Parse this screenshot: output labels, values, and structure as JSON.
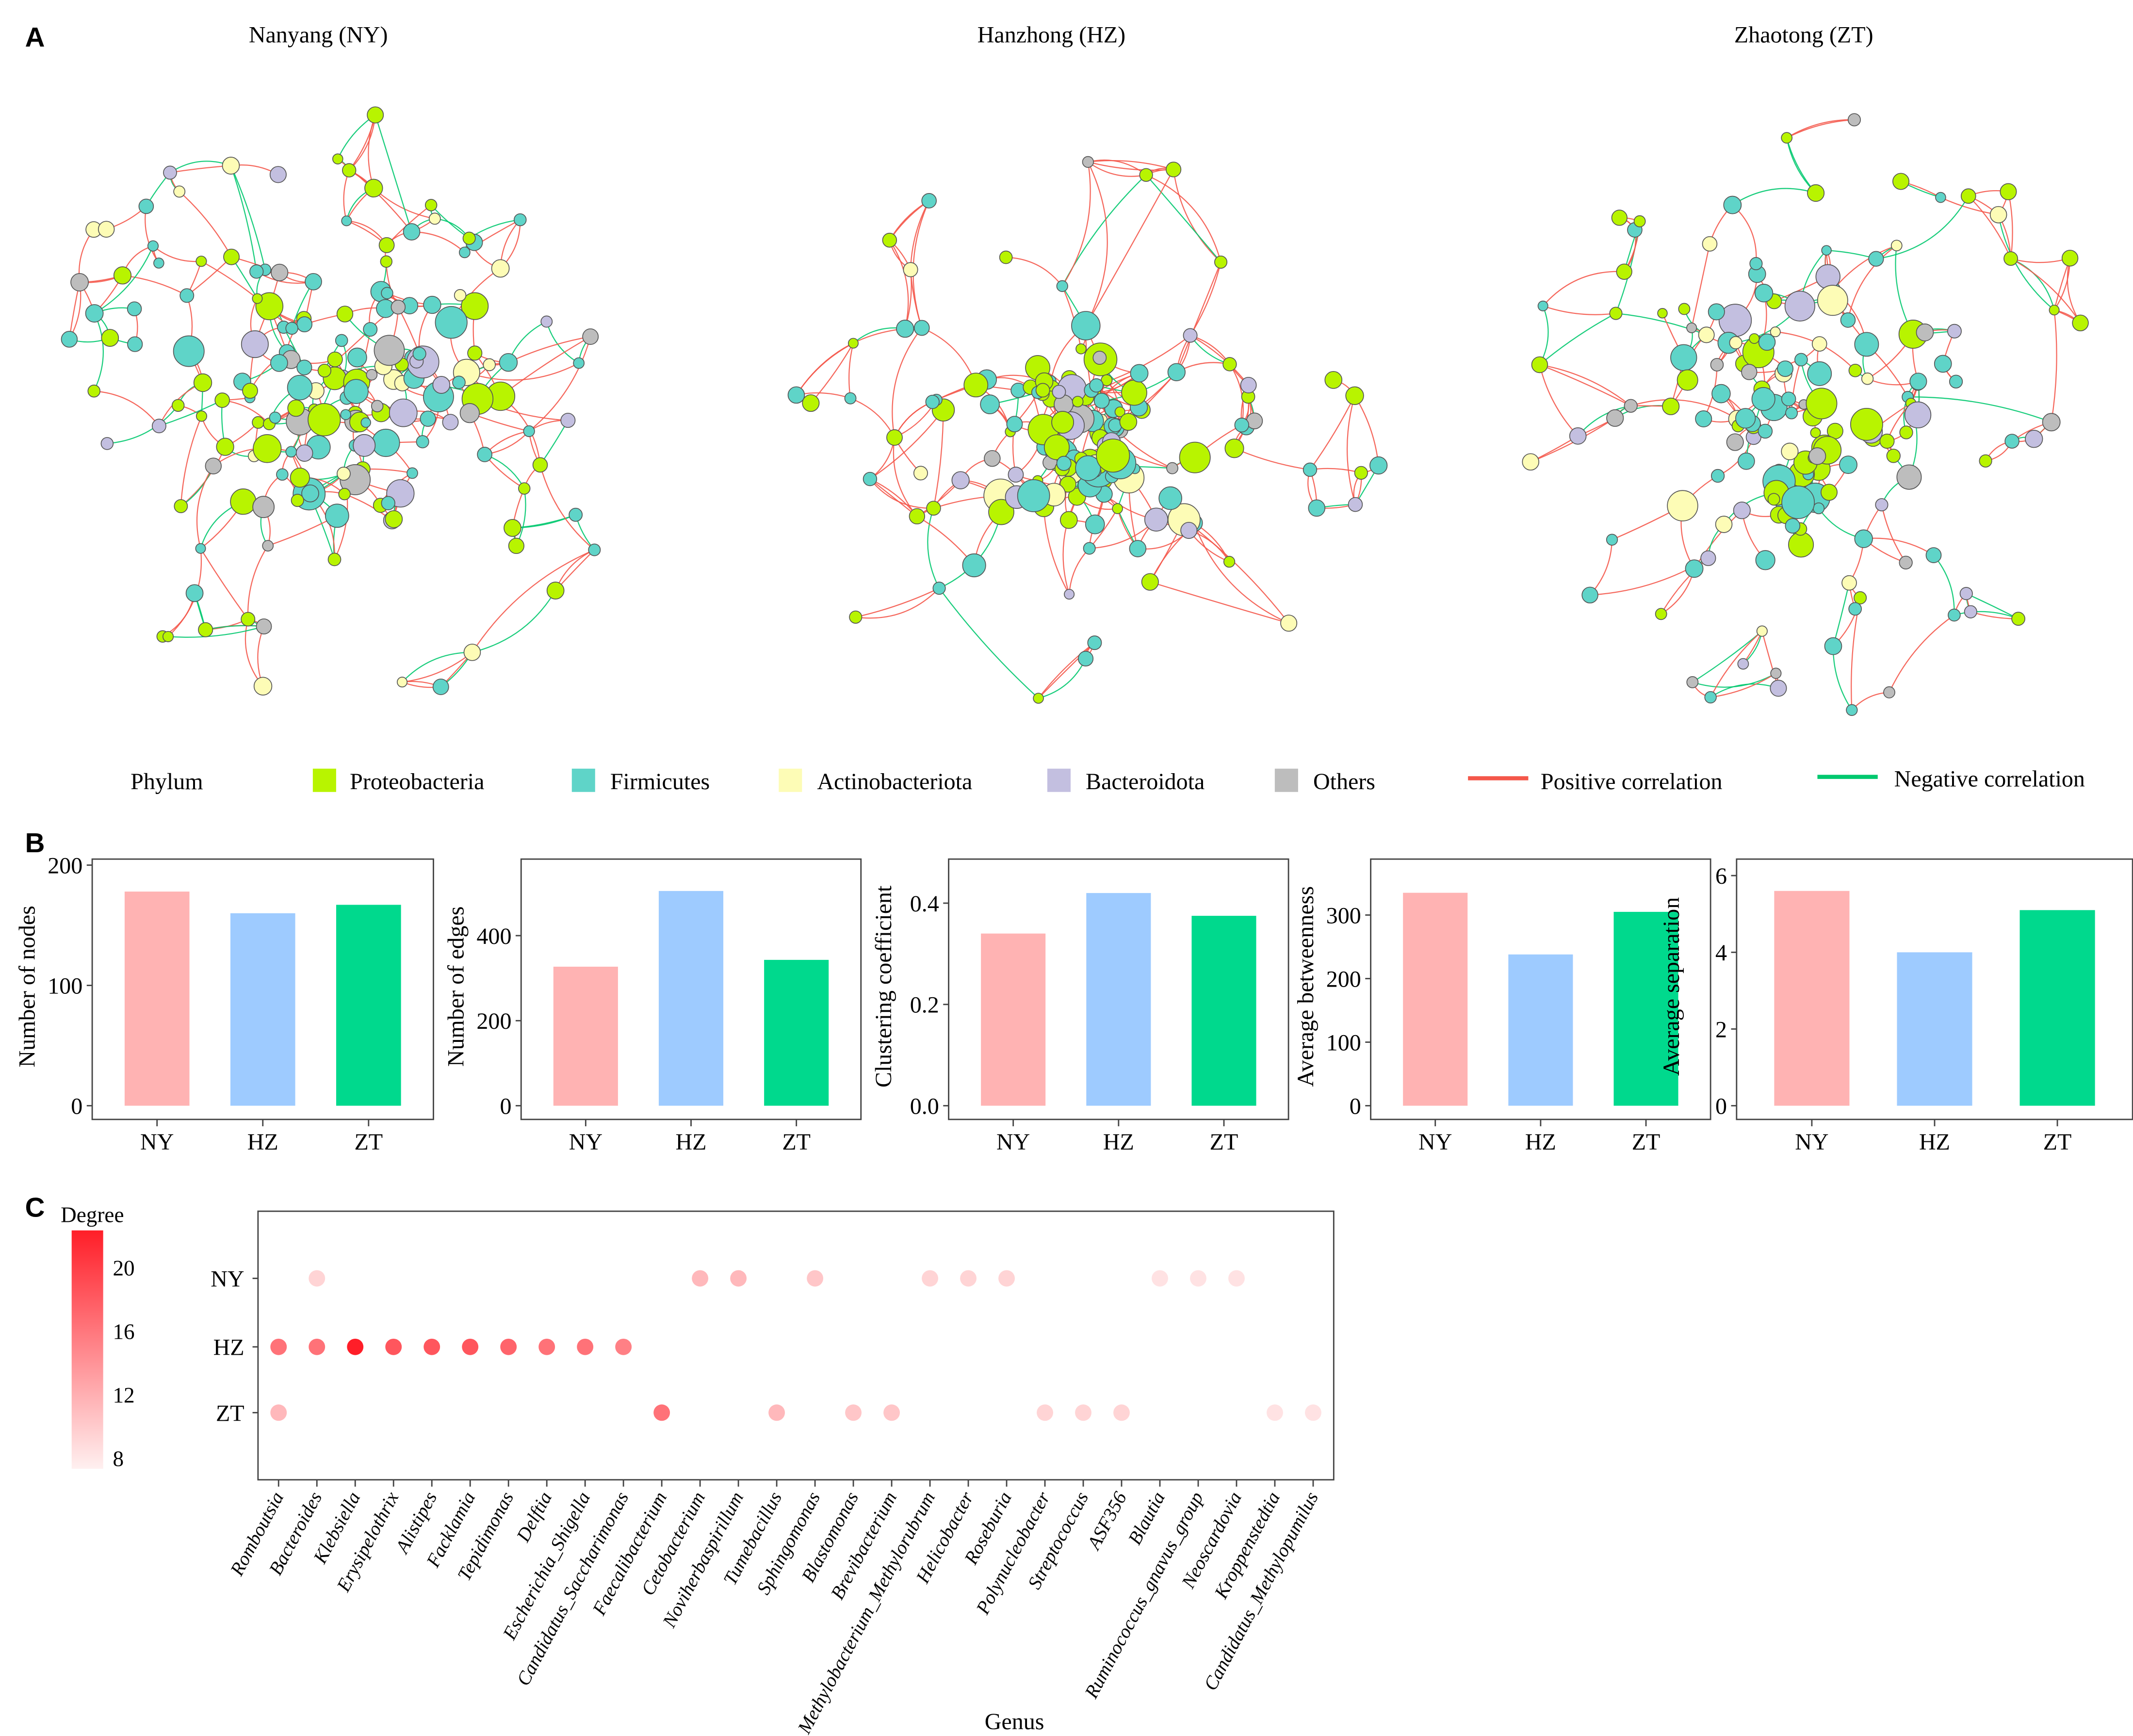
{
  "panel_labels": {
    "a": "A",
    "b": "B",
    "c": "C"
  },
  "networks": [
    {
      "title": "Nanyang (NY)"
    },
    {
      "title": "Hanzhong (HZ)"
    },
    {
      "title": "Zhaotong (ZT)"
    }
  ],
  "legend": {
    "title": "Phylum",
    "phyla": [
      {
        "label": "Proteobacteria",
        "color": "#b8f400"
      },
      {
        "label": "Firmicutes",
        "color": "#5fd4c8"
      },
      {
        "label": "Actinobacteriota",
        "color": "#fdfcb6"
      },
      {
        "label": "Bacteroidota",
        "color": "#c3bfe0"
      },
      {
        "label": "Others",
        "color": "#bdbdbd"
      }
    ],
    "edges": [
      {
        "label": "Positive correlation",
        "color": "#f4574a"
      },
      {
        "label": "Negative correlation",
        "color": "#00c86e"
      }
    ]
  },
  "chart_data": [
    {
      "type": "bar",
      "ylabel": "Number of nodes",
      "categories": [
        "NY",
        "HZ",
        "ZT"
      ],
      "values": [
        178,
        160,
        167
      ],
      "ylim": [
        0,
        205
      ],
      "yticks": [
        "0",
        "100",
        "200"
      ],
      "ytick_values": [
        0,
        100,
        200
      ],
      "colors": [
        "#ffb3b3",
        "#9ecbff",
        "#00d98d"
      ]
    },
    {
      "type": "bar",
      "ylabel": "Number of edges",
      "categories": [
        "NY",
        "HZ",
        "ZT"
      ],
      "values": [
        327,
        505,
        343
      ],
      "ylim": [
        0,
        580
      ],
      "yticks": [
        "0",
        "200",
        "400"
      ],
      "ytick_values": [
        0,
        200,
        400
      ],
      "colors": [
        "#ffb3b3",
        "#9ecbff",
        "#00d98d"
      ]
    },
    {
      "type": "bar",
      "ylabel": "Clustering coefficient",
      "categories": [
        "NY",
        "HZ",
        "ZT"
      ],
      "values": [
        0.34,
        0.42,
        0.375
      ],
      "ylim": [
        0,
        0.487
      ],
      "yticks": [
        "0.0",
        "0.2",
        "0.4"
      ],
      "ytick_values": [
        0,
        0.2,
        0.4
      ],
      "colors": [
        "#ffb3b3",
        "#9ecbff",
        "#00d98d"
      ]
    },
    {
      "type": "bar",
      "ylabel": "Average betweenness",
      "categories": [
        "NY",
        "HZ",
        "ZT"
      ],
      "values": [
        335,
        238,
        305
      ],
      "ylim": [
        0,
        388
      ],
      "yticks": [
        "0",
        "100",
        "200",
        "300"
      ],
      "ytick_values": [
        0,
        100,
        200,
        300
      ],
      "colors": [
        "#ffb3b3",
        "#9ecbff",
        "#00d98d"
      ]
    },
    {
      "type": "bar",
      "ylabel": "Average separation",
      "categories": [
        "NY",
        "HZ",
        "ZT"
      ],
      "values": [
        5.6,
        4.0,
        5.1
      ],
      "ylim": [
        0,
        6.43
      ],
      "yticks": [
        "0",
        "2",
        "4",
        "6"
      ],
      "ytick_values": [
        0,
        2,
        4,
        6
      ],
      "colors": [
        "#ffb3b3",
        "#9ecbff",
        "#00d98d"
      ]
    },
    {
      "type": "scatter",
      "xlabel": "Genus",
      "legend_title": "Degree",
      "color_range": [
        8,
        23
      ],
      "colorbar_ticks": [
        "8",
        "12",
        "16",
        "20"
      ],
      "colorbar_tick_values": [
        8,
        12,
        16,
        20
      ],
      "rows": [
        "NY",
        "HZ",
        "ZT"
      ],
      "genera": [
        "Romboutsia",
        "Bacteroides",
        "Klebsiella",
        "Erysipelothrix",
        "Alistipes",
        "Facklamia",
        "Tepidimonas",
        "Delftia",
        "Escherichia_Shigella",
        "Candidatus_Saccharimonas",
        "Faecalibacterium",
        "Cetobacterium",
        "Noviherbaspirillum",
        "Tumebacillus",
        "Sphingomonas",
        "Blastomonas",
        "Brevibacterium",
        "Methylobacterium_Methylorubrum",
        "Helicobacter",
        "Roseburia",
        "Polynucleobacter",
        "Streptococcus",
        "ASF356",
        "Blautia",
        "Ruminococcus_gnavus_group",
        "Neoscardovia",
        "Kroppenstedtia",
        "Candidatus_Methylopumilus"
      ],
      "points": [
        {
          "genus": "Bacteroides",
          "site": "NY",
          "degree": 10
        },
        {
          "genus": "Cetobacterium",
          "site": "NY",
          "degree": 12
        },
        {
          "genus": "Noviherbaspirillum",
          "site": "NY",
          "degree": 12
        },
        {
          "genus": "Sphingomonas",
          "site": "NY",
          "degree": 11
        },
        {
          "genus": "Methylobacterium_Methylorubrum",
          "site": "NY",
          "degree": 10
        },
        {
          "genus": "Helicobacter",
          "site": "NY",
          "degree": 10
        },
        {
          "genus": "Roseburia",
          "site": "NY",
          "degree": 10
        },
        {
          "genus": "Blautia",
          "site": "NY",
          "degree": 9
        },
        {
          "genus": "Ruminococcus_gnavus_group",
          "site": "NY",
          "degree": 9
        },
        {
          "genus": "Neoscardovia",
          "site": "NY",
          "degree": 9
        },
        {
          "genus": "Romboutsia",
          "site": "HZ",
          "degree": 17
        },
        {
          "genus": "Bacteroides",
          "site": "HZ",
          "degree": 17
        },
        {
          "genus": "Klebsiella",
          "site": "HZ",
          "degree": 23
        },
        {
          "genus": "Erysipelothrix",
          "site": "HZ",
          "degree": 19
        },
        {
          "genus": "Alistipes",
          "site": "HZ",
          "degree": 19
        },
        {
          "genus": "Facklamia",
          "site": "HZ",
          "degree": 19
        },
        {
          "genus": "Tepidimonas",
          "site": "HZ",
          "degree": 18
        },
        {
          "genus": "Delftia",
          "site": "HZ",
          "degree": 17
        },
        {
          "genus": "Escherichia_Shigella",
          "site": "HZ",
          "degree": 17
        },
        {
          "genus": "Candidatus_Saccharimonas",
          "site": "HZ",
          "degree": 16
        },
        {
          "genus": "Romboutsia",
          "site": "ZT",
          "degree": 12
        },
        {
          "genus": "Faecalibacterium",
          "site": "ZT",
          "degree": 17
        },
        {
          "genus": "Tumebacillus",
          "site": "ZT",
          "degree": 12
        },
        {
          "genus": "Blastomonas",
          "site": "ZT",
          "degree": 11
        },
        {
          "genus": "Brevibacterium",
          "site": "ZT",
          "degree": 11
        },
        {
          "genus": "Polynucleobacter",
          "site": "ZT",
          "degree": 10
        },
        {
          "genus": "Streptococcus",
          "site": "ZT",
          "degree": 10
        },
        {
          "genus": "ASF356",
          "site": "ZT",
          "degree": 10
        },
        {
          "genus": "Kroppenstedtia",
          "site": "ZT",
          "degree": 9
        },
        {
          "genus": "Candidatus_Methylopumilus",
          "site": "ZT",
          "degree": 9
        }
      ]
    }
  ]
}
